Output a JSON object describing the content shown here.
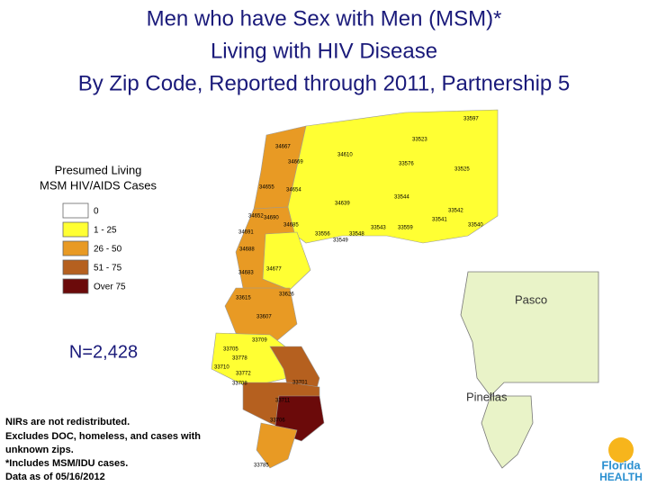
{
  "header": {
    "title": [
      "Men who have Sex with Men (MSM)*",
      "Living with HIV Disease",
      "By Zip Code, Reported through 2011, Partnership 5"
    ]
  },
  "legend": {
    "title": [
      "Presumed Living",
      "MSM HIV/AIDS Cases"
    ],
    "items": [
      {
        "label": "0",
        "color": "#ffffff"
      },
      {
        "label": "1 - 25",
        "color": "#ffff33"
      },
      {
        "label": "26 - 50",
        "color": "#e89a24"
      },
      {
        "label": "51 - 75",
        "color": "#b5601f"
      },
      {
        "label": "Over 75",
        "color": "#6b0a0a"
      }
    ]
  },
  "total": "N=2,428",
  "notes": [
    "NIRs are not redistributed.",
    "Excludes DOC, homeless, and cases with",
    "unknown zips.",
    "*Includes MSM/IDU cases.",
    "Data as of 05/16/2012"
  ],
  "counties": [
    "Pasco",
    "Pinellas"
  ],
  "zips": [
    "33597",
    "33523",
    "34667",
    "34610",
    "33576",
    "33525",
    "34669",
    "34655",
    "34654",
    "33544",
    "34639",
    "33542",
    "33541",
    "33540",
    "34652",
    "34690",
    "34691",
    "33559",
    "33543",
    "33549",
    "34688",
    "34685",
    "33556",
    "33548",
    "34683",
    "34677",
    "33626",
    "33615",
    "33607",
    "33701",
    "33711",
    "33705",
    "33709",
    "33710",
    "33778",
    "33772",
    "33774",
    "33706",
    "33708",
    "33785"
  ],
  "logo": [
    "Florida",
    "HEALTH"
  ]
}
